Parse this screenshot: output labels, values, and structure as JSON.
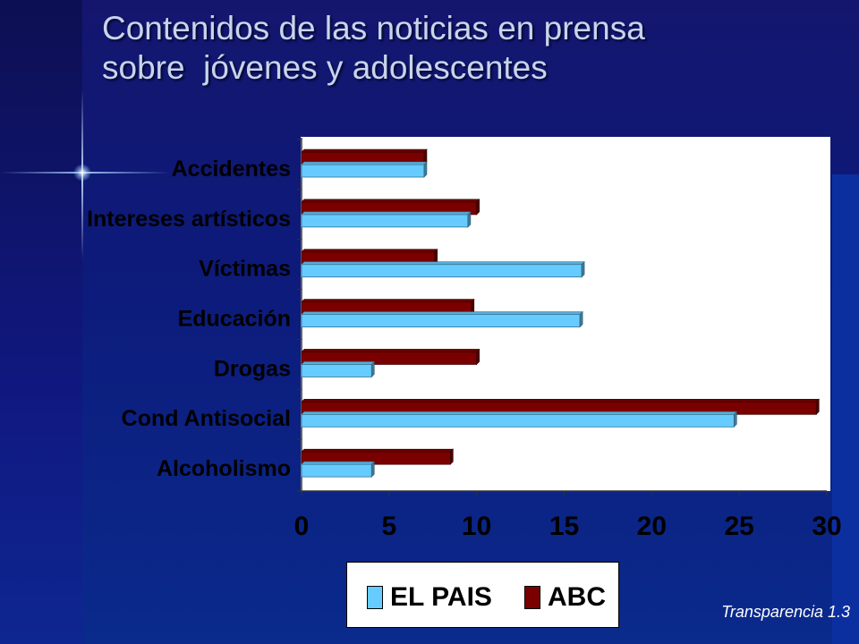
{
  "slide": {
    "title_line1": "Contenidos de las noticias en prensa",
    "title_line2": "sobre  jóvenes y adolescentes",
    "caption": "Transparencia 1.3"
  },
  "colors": {
    "el_pais": "#66ccff",
    "abc": "#7a0000",
    "background": "#14166e",
    "title": "#c8d4ec"
  },
  "legend": [
    {
      "label": "EL PAIS",
      "color": "#66ccff"
    },
    {
      "label": "ABC",
      "color": "#7a0000"
    }
  ],
  "chart_data": {
    "type": "bar",
    "orientation": "horizontal",
    "title": "Contenidos de las noticias en prensa sobre  jóvenes y adolescentes",
    "categories": [
      "Accidentes",
      "Intereses artísticos",
      "Víctimas",
      "Educación",
      "Drogas",
      "Cond Antisocial",
      "Alcoholismo"
    ],
    "series": [
      {
        "name": "EL PAIS",
        "color": "#66ccff",
        "values": [
          7,
          9.5,
          16,
          15.9,
          4,
          24.7,
          4
        ]
      },
      {
        "name": "ABC",
        "color": "#7a0000",
        "values": [
          7,
          10,
          7.6,
          9.7,
          10,
          29.4,
          8.5
        ]
      }
    ],
    "xlim": [
      0,
      30
    ],
    "xticks": [
      "0",
      "5",
      "10",
      "15",
      "20",
      "25",
      "30"
    ],
    "grid": false,
    "legend_position": "bottom"
  }
}
